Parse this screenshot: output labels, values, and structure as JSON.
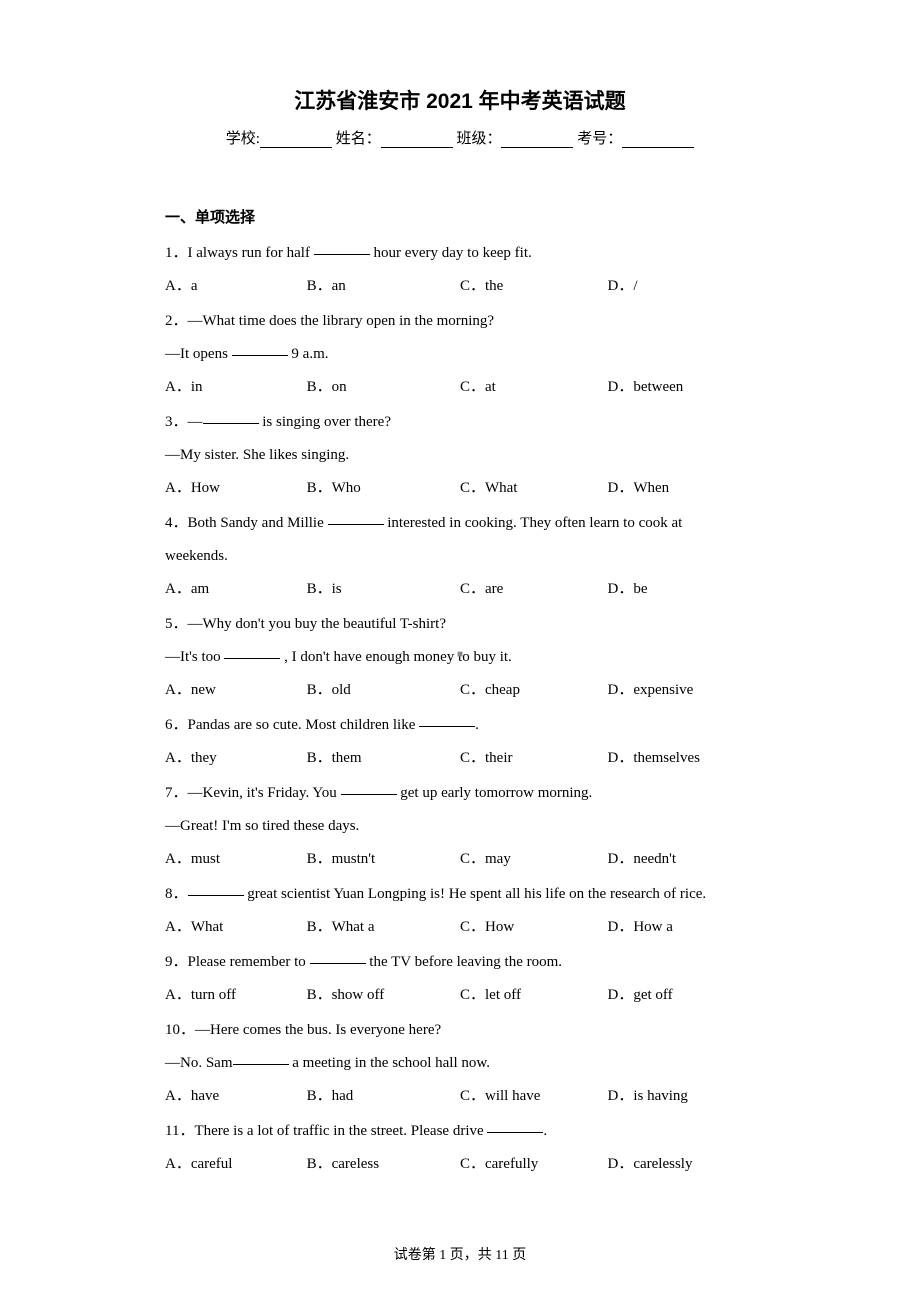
{
  "title": "江苏省淮安市 2021 年中考英语试题",
  "info": {
    "school_label": "学校:",
    "name_label": "姓名：",
    "class_label": "班级：",
    "examno_label": "考号："
  },
  "section_title": "一、单项选择",
  "questions": [
    {
      "num": "1．",
      "lines": [
        "I always run for half ________ hour every day to keep fit."
      ],
      "options": {
        "a": "A．a",
        "b": "B．an",
        "c": "C．the",
        "d": "D．/"
      }
    },
    {
      "num": "2．",
      "lines": [
        "—What time does the library open in the morning?",
        "—It opens ________ 9 a.m."
      ],
      "options": {
        "a": "A．in",
        "b": "B．on",
        "c": "C．at",
        "d": "D．between"
      }
    },
    {
      "num": "3．",
      "lines": [
        "—________ is singing over there?",
        "—My sister. She likes singing."
      ],
      "options": {
        "a": "A．How",
        "b": "B．Who",
        "c": "C．What",
        "d": "D．When"
      }
    },
    {
      "num": "4．",
      "lines": [
        "Both Sandy and Millie ________ interested in cooking. They often learn to cook at",
        "weekends."
      ],
      "options": {
        "a": "A．am",
        "b": "B．is",
        "c": "C．are",
        "d": "D．be"
      }
    },
    {
      "num": "5．",
      "lines": [
        "—Why don't you buy the beautiful T-shirt?",
        "—It's too ________ , I don't have enough money to buy it."
      ],
      "options": {
        "a": "A．new",
        "b": "B．old",
        "c": "C．cheap",
        "d": "D．expensive"
      }
    },
    {
      "num": "6．",
      "lines": [
        "Pandas are so cute. Most children like ________."
      ],
      "options": {
        "a": "A．they",
        "b": "B．them",
        "c": "C．their",
        "d": "D．themselves"
      }
    },
    {
      "num": "7．",
      "lines": [
        "—Kevin, it's Friday. You ________ get up early tomorrow morning.",
        "—Great! I'm so tired these days."
      ],
      "options": {
        "a": "A．must",
        "b": "B．mustn't",
        "c": "C．may",
        "d": "D．needn't"
      }
    },
    {
      "num": "8．",
      "lines": [
        "________ great scientist Yuan Longping is! He spent all his life on the research of rice."
      ],
      "options": {
        "a": "A．What",
        "b": "B．What a",
        "c": "C．How",
        "d": "D．How a"
      }
    },
    {
      "num": "9．",
      "lines": [
        "Please remember to ________ the TV before leaving the room."
      ],
      "options": {
        "a": "A．turn off",
        "b": "B．show off",
        "c": "C．let off",
        "d": "D．get off"
      }
    },
    {
      "num": "10．",
      "lines": [
        "—Here comes the bus. Is everyone here?",
        "—No. Sam________ a meeting in the school hall now."
      ],
      "options": {
        "a": "A．have",
        "b": "B．had",
        "c": "C．will have",
        "d": "D．is having"
      }
    },
    {
      "num": "11．",
      "lines": [
        "There is a lot of traffic in the street. Please drive ________."
      ],
      "options": {
        "a": "A．careful",
        "b": "B．careless",
        "c": "C．carefully",
        "d": "D．carelessly"
      }
    }
  ],
  "footer": "试卷第 1 页，共 11 页",
  "center_mark": "■"
}
